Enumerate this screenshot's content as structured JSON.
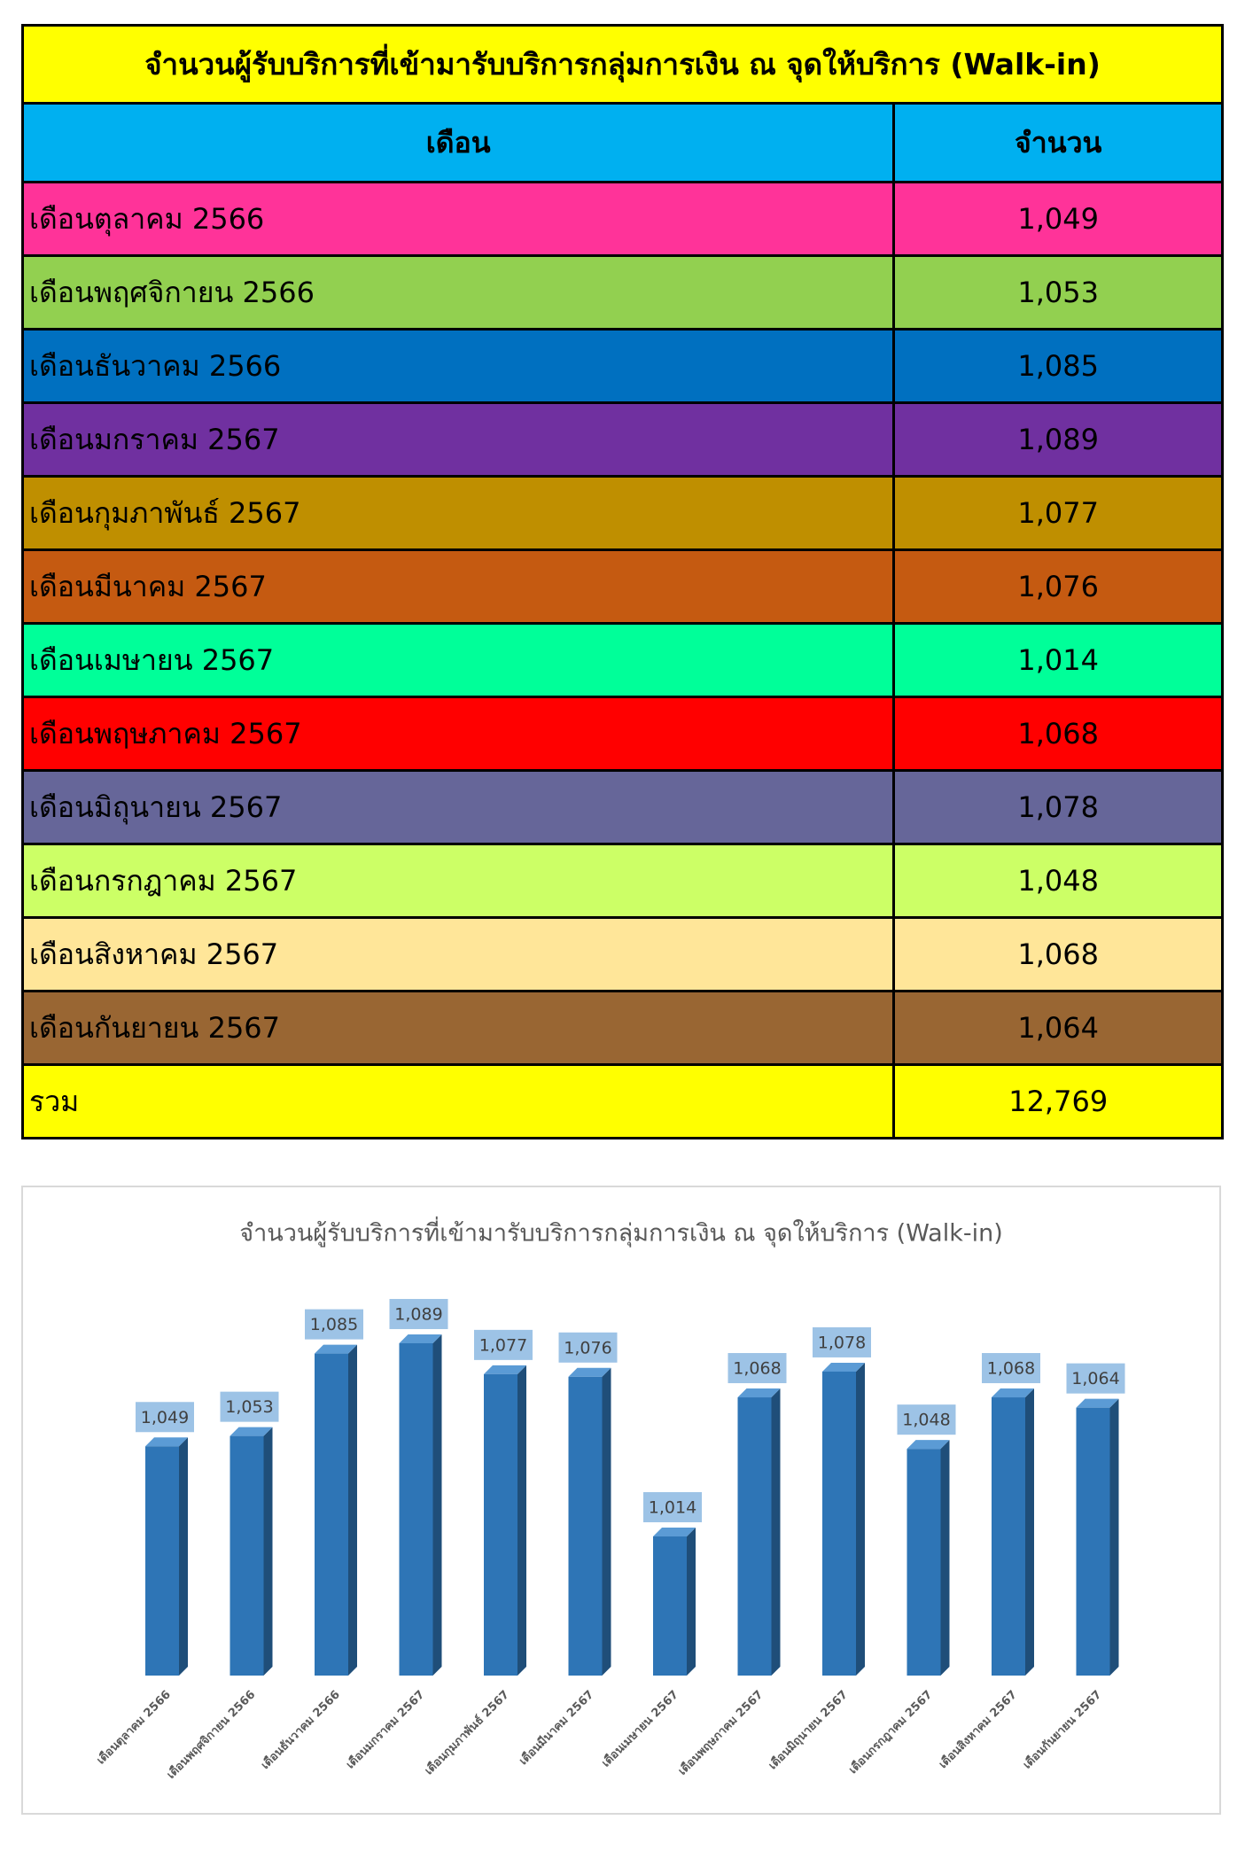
{
  "table": {
    "title": "จำนวนผู้รับบริการที่เข้ามารับบริการกลุ่มการเงิน ณ จุดให้บริการ (Walk-in)",
    "header": [
      "เดือน",
      "จำนวน"
    ],
    "rows": [
      [
        "เดือนตุลาคม 2566",
        "1,049"
      ],
      [
        "เดือนพฤศจิกายน 2566",
        "1,053"
      ],
      [
        "เดือนธันวาคม 2566",
        "1,085"
      ],
      [
        "เดือนมกราคม 2567",
        "1,089"
      ],
      [
        "เดือนกุมภาพันธ์ 2567",
        "1,077"
      ],
      [
        "เดือนมีนาคม 2567",
        "1,076"
      ],
      [
        "เดือนเมษายน 2567",
        "1,014"
      ],
      [
        "เดือนพฤษภาคม 2567",
        "1,068"
      ],
      [
        "เดือนมิถุนายน 2567",
        "1,078"
      ],
      [
        "เดือนกรกฎาคม 2567",
        "1,048"
      ],
      [
        "เดือนสิงหาคม 2567",
        "1,068"
      ],
      [
        "เดือนกันยายน 2567",
        "1,064"
      ]
    ],
    "total": [
      "รวม",
      "12,769"
    ]
  },
  "chart_data": {
    "type": "bar",
    "title": "จำนวนผู้รับบริการที่เข้ามารับบริการกลุ่มการเงิน ณ จุดให้บริการ (Walk-in)",
    "categories": [
      "เดือนตุลาคม 2566",
      "เดือนพฤศจิกายน 2566",
      "เดือนธันวาคม 2566",
      "เดือนมกราคม 2567",
      "เดือนกุมภาพันธ์ 2567",
      "เดือนมีนาคม 2567",
      "เดือนเมษายน 2567",
      "เดือนพฤษภาคม 2567",
      "เดือนมิถุนายน 2567",
      "เดือนกรกฎาคม 2567",
      "เดือนสิงหาคม 2567",
      "เดือนกันยายน 2567"
    ],
    "values": [
      1049,
      1053,
      1085,
      1089,
      1077,
      1076,
      1014,
      1068,
      1078,
      1048,
      1068,
      1064
    ],
    "value_labels": [
      "1,049",
      "1,053",
      "1,085",
      "1,089",
      "1,077",
      "1,076",
      "1,014",
      "1,068",
      "1,078",
      "1,048",
      "1,068",
      "1,064"
    ],
    "color": "#2e75b6",
    "ylim": [
      960,
      1100
    ]
  }
}
